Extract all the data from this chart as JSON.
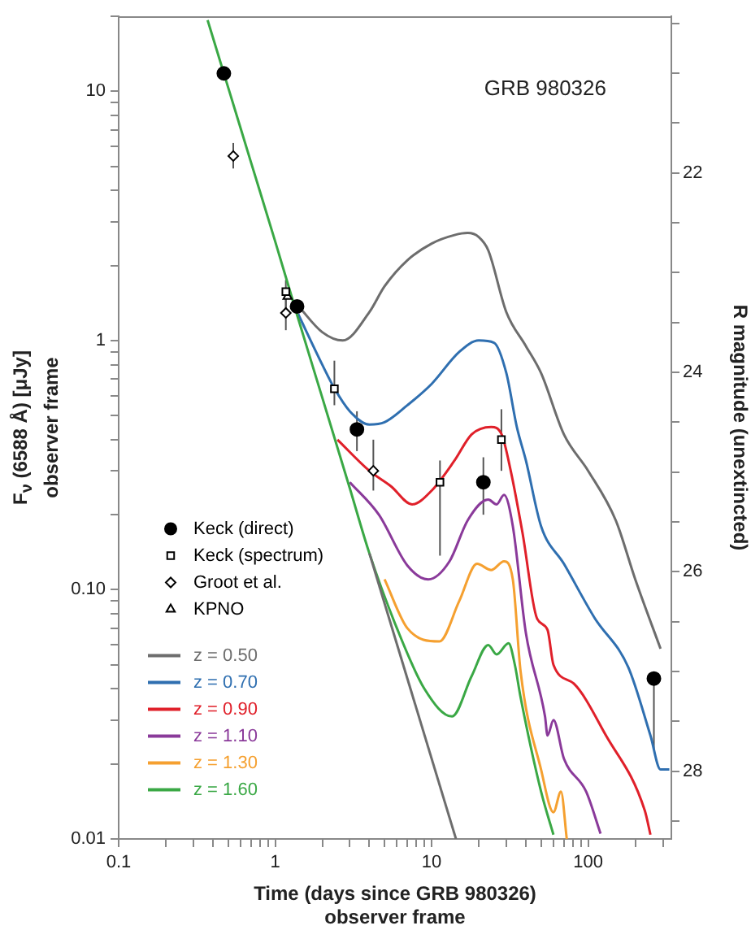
{
  "chart_data": {
    "type": "line",
    "xlabel": "Time (days since GRB 980326)\nobserver frame",
    "ylabel": "F$_{ν}$ (6588 Å) [μJy]\nobserver frame",
    "y2label": "R magnitude (unextincted)",
    "annotations": [
      "GRB 980326"
    ],
    "log": "xy",
    "grid": false,
    "legend": "bottom left",
    "xlim": [
      0.1,
      340
    ],
    "ylim": [
      0.01,
      20
    ],
    "y2lim": [
      28.68,
      20.43
    ],
    "xticks": [
      0.1,
      {
        "value": 0.2,
        "label": null
      },
      {
        "value": 0.3,
        "label": null
      },
      {
        "value": 0.4,
        "label": null
      },
      {
        "value": 0.5,
        "label": null
      },
      {
        "value": 0.6,
        "label": null
      },
      {
        "value": 0.7,
        "label": null
      },
      {
        "value": 0.8,
        "label": null
      },
      {
        "value": 0.9,
        "label": null
      },
      1,
      {
        "value": 2,
        "label": null
      },
      {
        "value": 3,
        "label": null
      },
      {
        "value": 4,
        "label": null
      },
      {
        "value": 5,
        "label": null
      },
      {
        "value": 6,
        "label": null
      },
      {
        "value": 7,
        "label": null
      },
      {
        "value": 8,
        "label": null
      },
      {
        "value": 9,
        "label": null
      },
      10,
      {
        "value": 20,
        "label": null
      },
      {
        "value": 30,
        "label": null
      },
      {
        "value": 40,
        "label": null
      },
      {
        "value": 50,
        "label": null
      },
      {
        "value": 60,
        "label": null
      },
      {
        "value": 70,
        "label": null
      },
      {
        "value": 80,
        "label": null
      },
      {
        "value": 90,
        "label": null
      },
      100,
      {
        "value": 200,
        "label": null
      },
      {
        "value": 300,
        "label": null
      }
    ],
    "yticks": [
      0.01,
      {
        "value": 0.02,
        "label": null
      },
      {
        "value": 0.03,
        "label": null
      },
      {
        "value": 0.04,
        "label": null
      },
      {
        "value": 0.05,
        "label": null
      },
      {
        "value": 0.06,
        "label": null
      },
      {
        "value": 0.07,
        "label": null
      },
      {
        "value": 0.08,
        "label": null
      },
      {
        "value": 0.09,
        "label": null
      },
      {
        "value": 0.1,
        "label": "0.10"
      },
      {
        "value": 0.2,
        "label": null
      },
      {
        "value": 0.3,
        "label": null
      },
      {
        "value": 0.4,
        "label": null
      },
      {
        "value": 0.5,
        "label": null
      },
      {
        "value": 0.6,
        "label": null
      },
      {
        "value": 0.7,
        "label": null
      },
      {
        "value": 0.8,
        "label": null
      },
      {
        "value": 0.9,
        "label": null
      },
      1,
      {
        "value": 2,
        "label": null
      },
      {
        "value": 3,
        "label": null
      },
      {
        "value": 4,
        "label": null
      },
      {
        "value": 5,
        "label": null
      },
      {
        "value": 6,
        "label": null
      },
      {
        "value": 7,
        "label": null
      },
      {
        "value": 8,
        "label": null
      },
      {
        "value": 9,
        "label": null
      },
      10,
      {
        "value": 20,
        "label": null
      }
    ],
    "y2ticks": [
      {
        "value": 20.5,
        "label": null
      },
      {
        "value": 21,
        "label": null
      },
      {
        "value": 21.5,
        "label": null
      },
      22,
      {
        "value": 22.5,
        "label": null
      },
      {
        "value": 23,
        "label": null
      },
      {
        "value": 23.5,
        "label": null
      },
      24,
      {
        "value": 24.5,
        "label": null
      },
      {
        "value": 25,
        "label": null
      },
      {
        "value": 25.5,
        "label": null
      },
      26,
      {
        "value": 26.5,
        "label": null
      },
      {
        "value": 27,
        "label": null
      },
      {
        "value": 27.5,
        "label": null
      },
      28,
      {
        "value": 28.5,
        "label": null
      }
    ],
    "series": [
      {
        "type": "scatter",
        "name": "Keck (direct)",
        "color": "#000000",
        "marker": "circle",
        "x": [
          0.47,
          1.38,
          3.33,
          21.4,
          263
        ],
        "values": [
          11.8,
          1.37,
          0.44,
          0.27,
          0.044
        ],
        "errors": [
          null,
          null,
          [
            0.36,
            0.52
          ],
          [
            0.2,
            0.34
          ],
          [
            0.023,
            0.044
          ]
        ]
      },
      {
        "type": "scatter",
        "name": "Keck (spectrum)",
        "color": "#000000",
        "marker": "square",
        "x": [
          1.17,
          2.39,
          11.3,
          27.9
        ],
        "values": [
          1.57,
          0.64,
          0.27,
          0.4
        ],
        "errors": [
          [
            1.35,
            1.75
          ],
          [
            0.55,
            0.83
          ],
          [
            0.137,
            0.33
          ],
          [
            0.3,
            0.53
          ]
        ]
      },
      {
        "type": "scatter",
        "name": "Groot et al.",
        "color": "#000000",
        "marker": "diamond",
        "x": [
          0.54,
          1.17,
          4.24
        ],
        "values": [
          5.5,
          1.29,
          0.3
        ],
        "errors": [
          [
            4.9,
            6.2
          ],
          [
            1.1,
            1.55
          ],
          [
            0.25,
            0.4
          ]
        ]
      },
      {
        "type": "scatter",
        "name": "KPNO",
        "color": "#000000",
        "marker": "triangle",
        "x": [
          1.2
        ],
        "values": [
          1.5
        ]
      },
      {
        "name": "z = 0.50",
        "color": "#6d6d6d",
        "marker": "none",
        "x": [
          1.4,
          2,
          2.7,
          4,
          5,
          7,
          10,
          14,
          17,
          20,
          23,
          30,
          40,
          50,
          70,
          100,
          150,
          200,
          290
        ],
        "values": [
          1.38,
          1.08,
          1.0,
          1.3,
          1.65,
          2.1,
          2.45,
          2.65,
          2.7,
          2.6,
          2.3,
          1.3,
          0.95,
          0.74,
          0.42,
          0.3,
          0.19,
          0.11,
          0.058
        ]
      },
      {
        "name": "z = 0.70",
        "color": "#2f6fb0",
        "marker": "none",
        "x": [
          1.4,
          2,
          2.4,
          3,
          4,
          5,
          7,
          10,
          15,
          20,
          25,
          30,
          35,
          40,
          50,
          70,
          110,
          180,
          250,
          290,
          330
        ],
        "values": [
          1.28,
          0.8,
          0.64,
          0.52,
          0.46,
          0.47,
          0.55,
          0.67,
          0.9,
          1.0,
          0.98,
          0.74,
          0.45,
          0.33,
          0.18,
          0.127,
          0.077,
          0.049,
          0.026,
          0.019,
          0.019
        ]
      },
      {
        "name": "z = 0.90",
        "color": "#e0202a",
        "marker": "none",
        "x": [
          2.5,
          4,
          5.5,
          7.5,
          10,
          14,
          18,
          24,
          28,
          32,
          38,
          47,
          55,
          60,
          81,
          130,
          230,
          250
        ],
        "values": [
          0.4,
          0.3,
          0.26,
          0.22,
          0.25,
          0.33,
          0.42,
          0.45,
          0.42,
          0.3,
          0.17,
          0.077,
          0.069,
          0.05,
          0.042,
          0.026,
          0.013,
          0.0104
        ]
      },
      {
        "name": "z = 1.10",
        "color": "#8a3a9a",
        "marker": "none",
        "x": [
          3,
          4.6,
          7,
          9.5,
          13,
          17,
          23,
          26,
          29,
          33,
          40,
          53,
          55,
          60,
          70,
          97,
          120
        ],
        "values": [
          0.27,
          0.2,
          0.125,
          0.11,
          0.13,
          0.19,
          0.23,
          0.22,
          0.24,
          0.18,
          0.067,
          0.031,
          0.026,
          0.03,
          0.021,
          0.0155,
          0.0105
        ]
      },
      {
        "name": "z = 1.30",
        "color": "#f5a030",
        "marker": "none",
        "x": [
          5,
          7,
          11.2,
          15,
          19.5,
          24,
          29,
          33,
          37,
          50,
          60,
          67,
          73
        ],
        "values": [
          0.11,
          0.07,
          0.062,
          0.09,
          0.127,
          0.12,
          0.13,
          0.11,
          0.047,
          0.019,
          0.0128,
          0.0155,
          0.01
        ]
      },
      {
        "name": "z = 1.60",
        "color": "#3aa845",
        "marker": "none",
        "x": [
          0.37,
          0.5,
          0.7,
          1,
          1.4,
          2,
          3,
          4,
          6,
          9,
          13.5,
          18,
          23,
          26,
          31,
          34,
          37,
          50,
          60
        ],
        "values": [
          19.3,
          10.4,
          5.2,
          2.5,
          1.23,
          0.59,
          0.255,
          0.14,
          0.07,
          0.04,
          0.031,
          0.045,
          0.06,
          0.055,
          0.061,
          0.05,
          0.037,
          0.0155,
          0.0104
        ]
      },
      {
        "color": "#6d6d6d",
        "marker": "none",
        "x": [
          4,
          14.3
        ],
        "values": [
          0.14,
          0.01
        ]
      }
    ]
  }
}
